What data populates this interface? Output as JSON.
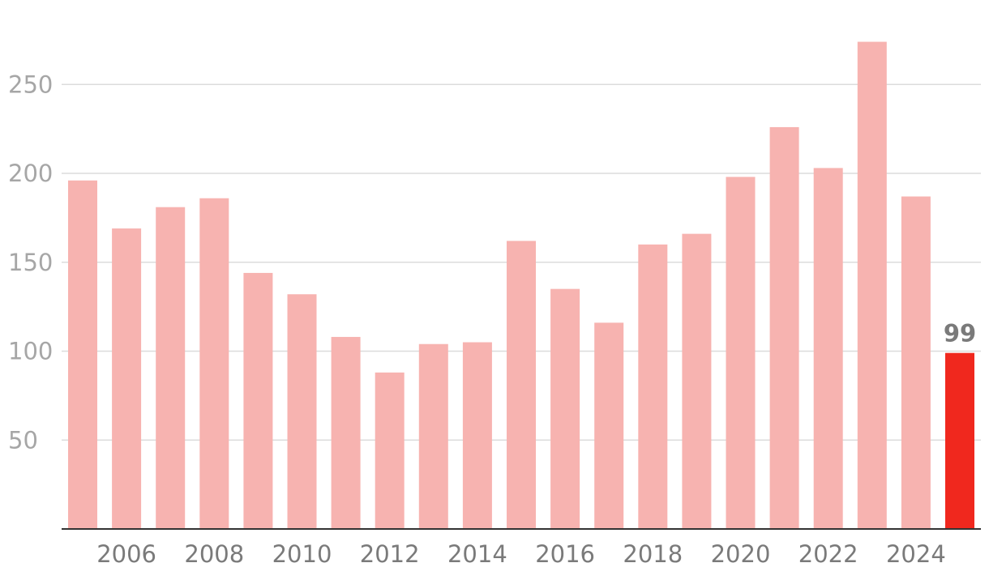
{
  "chart_data": {
    "type": "bar",
    "title": "",
    "xlabel": "",
    "ylabel": "",
    "ylim": [
      0,
      275
    ],
    "yticks": [
      50,
      100,
      150,
      200,
      250
    ],
    "grid": true,
    "categories": [
      "2005",
      "2006",
      "2007",
      "2008",
      "2009",
      "2010",
      "2011",
      "2012",
      "2013",
      "2014",
      "2015",
      "2016",
      "2017",
      "2018",
      "2019",
      "2020",
      "2021",
      "2022",
      "2023",
      "2024",
      "2025"
    ],
    "x_tick_labels": [
      "2006",
      "2008",
      "2010",
      "2012",
      "2014",
      "2016",
      "2018",
      "2020",
      "2022",
      "2024"
    ],
    "values": [
      196,
      169,
      181,
      186,
      144,
      132,
      108,
      88,
      104,
      105,
      162,
      135,
      116,
      160,
      166,
      198,
      226,
      203,
      274,
      187,
      99
    ],
    "colors": {
      "bar": "#f7b3b0",
      "highlight": "#f0281e"
    },
    "highlight_index": 20,
    "annotations": [
      {
        "category": "2025",
        "label": "99"
      }
    ]
  }
}
